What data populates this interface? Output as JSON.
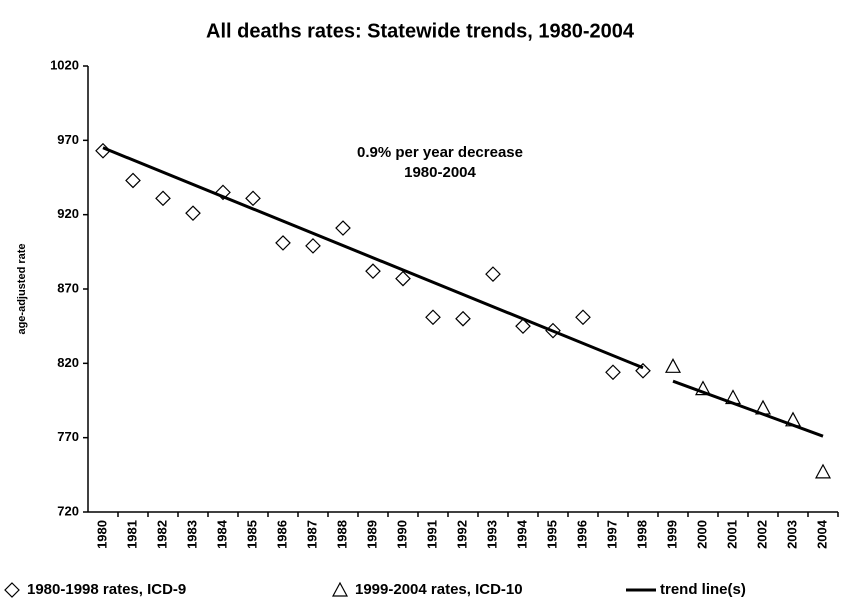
{
  "chart_data": {
    "type": "scatter",
    "title": "All deaths rates:  Statewide trends, 1980-2004",
    "y_label": "age-adjusted rate",
    "annotation": [
      "0.9% per year decrease",
      "1980-2004"
    ],
    "categories": [
      "1980",
      "1981",
      "1982",
      "1983",
      "1984",
      "1985",
      "1986",
      "1987",
      "1988",
      "1989",
      "1990",
      "1991",
      "1992",
      "1993",
      "1994",
      "1995",
      "1996",
      "1997",
      "1998",
      "1999",
      "2000",
      "2001",
      "2002",
      "2003",
      "2004"
    ],
    "series": [
      {
        "name": "1980-1998 rates, ICD-9",
        "marker": "diamond",
        "color": "#000000",
        "values": [
          963,
          943,
          931,
          921,
          935,
          931,
          901,
          899,
          911,
          882,
          877,
          851,
          850,
          880,
          845,
          842,
          851,
          814,
          815,
          null,
          null,
          null,
          null,
          null,
          null
        ]
      },
      {
        "name": "1999-2004 rates, ICD-10",
        "marker": "triangle",
        "color": "#000000",
        "values": [
          null,
          null,
          null,
          null,
          null,
          null,
          null,
          null,
          null,
          null,
          null,
          null,
          null,
          null,
          null,
          null,
          null,
          null,
          null,
          818,
          803,
          797,
          790,
          782,
          747
        ]
      },
      {
        "name": "trend line(s)",
        "marker": "line",
        "color": "#000000",
        "segments": [
          {
            "categories": [
              "1980",
              "1998"
            ],
            "values": [
              965,
              817
            ]
          },
          {
            "categories": [
              "1999",
              "2004"
            ],
            "values": [
              808,
              771
            ]
          }
        ]
      }
    ],
    "ylim": [
      720,
      1020
    ],
    "yticks": [
      720,
      770,
      820,
      870,
      920,
      970,
      1020
    ],
    "grid": false
  }
}
